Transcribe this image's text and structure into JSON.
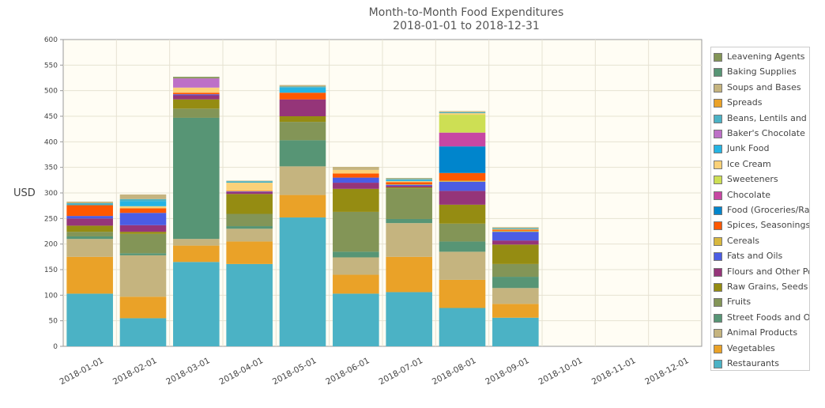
{
  "chart_data": {
    "type": "bar",
    "stacked": true,
    "title": "Month-to-Month Food Expenditures",
    "subtitle": "2018-01-01 to 2018-12-31",
    "ylabel": "USD",
    "xlabel": "",
    "ylim": [
      0,
      600
    ],
    "yticks": [
      0,
      50,
      100,
      150,
      200,
      250,
      300,
      350,
      400,
      450,
      500,
      550,
      600
    ],
    "grid": true,
    "legend_position": "right",
    "background": "#fffdf4",
    "categories": [
      "2018-01-01",
      "2018-02-01",
      "2018-03-01",
      "2018-04-01",
      "2018-05-01",
      "2018-06-01",
      "2018-07-01",
      "2018-08-01",
      "2018-09-01",
      "2018-10-01",
      "2018-11-01",
      "2018-12-01"
    ],
    "series": [
      {
        "name": "Restaurants",
        "color": "#4bb2c5",
        "values": [
          103,
          55,
          165,
          161,
          252,
          103,
          106,
          75,
          56,
          0,
          0,
          0
        ]
      },
      {
        "name": "Vegetables",
        "color": "#eaa228",
        "values": [
          72,
          42,
          32,
          44,
          44,
          37,
          69,
          55,
          27,
          0,
          0,
          0
        ]
      },
      {
        "name": "Animal Products",
        "color": "#c5b47f",
        "values": [
          35,
          81,
          13,
          25,
          56,
          34,
          66,
          55,
          31,
          0,
          0,
          0
        ]
      },
      {
        "name": "Street Foods and Ot",
        "color": "#579575",
        "values": [
          5,
          4,
          237,
          5,
          51,
          11,
          8,
          20,
          22,
          0,
          0,
          0
        ]
      },
      {
        "name": "Fruits",
        "color": "#839557",
        "values": [
          9,
          38,
          18,
          24,
          36,
          78,
          60,
          35,
          25,
          0,
          0,
          0
        ]
      },
      {
        "name": "Raw Grains, Seeds ar",
        "color": "#958c12",
        "values": [
          12,
          4,
          18,
          39,
          11,
          45,
          2,
          37,
          38,
          0,
          0,
          0
        ]
      },
      {
        "name": "Flours and Other Po",
        "color": "#953579",
        "values": [
          14,
          13,
          8,
          4,
          33,
          12,
          3,
          27,
          8,
          0,
          0,
          0
        ]
      },
      {
        "name": "Fats and Oils",
        "color": "#4b5de4",
        "values": [
          5,
          24,
          2,
          1,
          0,
          10,
          2,
          18,
          17,
          0,
          0,
          0
        ]
      },
      {
        "name": "Cereals",
        "color": "#d8b83f",
        "values": [
          0,
          0,
          0,
          0,
          0,
          0,
          1,
          2,
          2,
          0,
          0,
          0
        ]
      },
      {
        "name": "Spices, Seasonings a",
        "color": "#ff5800",
        "values": [
          21,
          9,
          3,
          1,
          13,
          8,
          4,
          15,
          2,
          0,
          0,
          0
        ]
      },
      {
        "name": "Food (Groceries/Raw",
        "color": "#0085cc",
        "values": [
          0,
          0,
          0,
          0,
          0,
          0,
          0,
          52,
          0,
          0,
          0,
          0
        ]
      },
      {
        "name": "Chocolate",
        "color": "#c747a3",
        "values": [
          0,
          0,
          0,
          0,
          0,
          0,
          0,
          27,
          0,
          0,
          0,
          0
        ]
      },
      {
        "name": "Sweeteners",
        "color": "#cddf54",
        "values": [
          0,
          0,
          0,
          0,
          0,
          0,
          0,
          35,
          0,
          0,
          0,
          0
        ]
      },
      {
        "name": "Ice Cream",
        "color": "#fbd178",
        "values": [
          0,
          4,
          10,
          16,
          0,
          7,
          2,
          3,
          1,
          0,
          0,
          0
        ]
      },
      {
        "name": "Junk Food",
        "color": "#26b4e3",
        "values": [
          0,
          10,
          0,
          0,
          10,
          0,
          2,
          0,
          0,
          0,
          0,
          0
        ]
      },
      {
        "name": "Baker's Chocolate",
        "color": "#bd70c7",
        "values": [
          0,
          0,
          18,
          0,
          0,
          0,
          0,
          0,
          0,
          0,
          0,
          0
        ]
      },
      {
        "name": "Beans, Lentils and O",
        "color": "#4bb2c5",
        "values": [
          4,
          4,
          0,
          3,
          2,
          0,
          2,
          2,
          2,
          0,
          0,
          0
        ]
      },
      {
        "name": "Spreads",
        "color": "#eaa228",
        "values": [
          0,
          0,
          0,
          0,
          0,
          0,
          0,
          0,
          0,
          0,
          0,
          0
        ]
      },
      {
        "name": "Soups and Bases",
        "color": "#c5b47f",
        "values": [
          3,
          9,
          0,
          1,
          3,
          6,
          1,
          2,
          2,
          0,
          0,
          0
        ]
      },
      {
        "name": "Baking Supplies",
        "color": "#579575",
        "values": [
          0,
          0,
          0,
          0,
          0,
          0,
          0,
          0,
          0,
          0,
          0,
          0
        ]
      },
      {
        "name": "Leavening Agents",
        "color": "#839557",
        "values": [
          0,
          0,
          3,
          0,
          0,
          0,
          1,
          0,
          0,
          0,
          0,
          0
        ]
      }
    ]
  }
}
